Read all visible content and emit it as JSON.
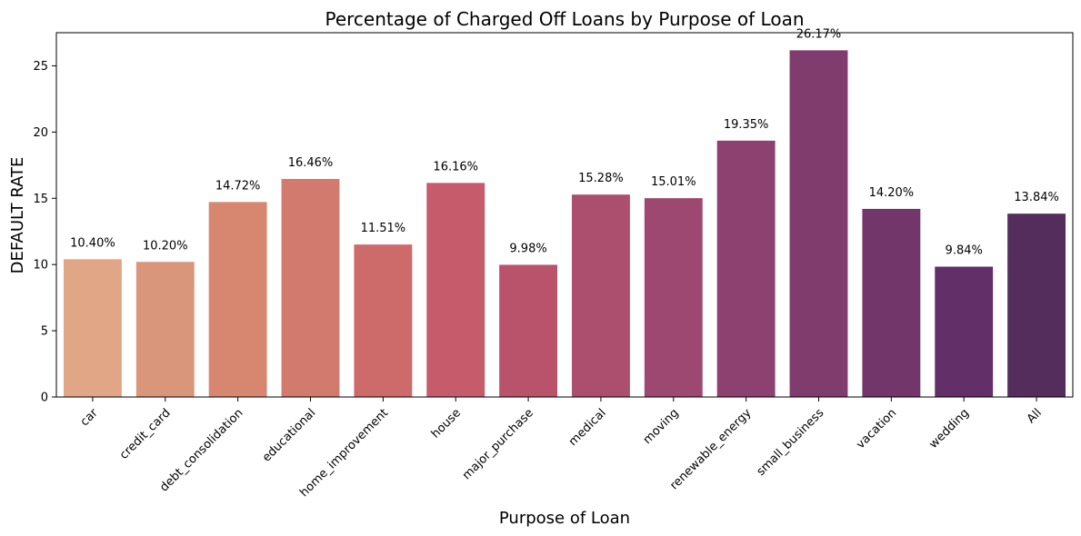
{
  "chart_data": {
    "type": "bar",
    "title": "Percentage of Charged Off Loans by Purpose of Loan",
    "xlabel": "Purpose of Loan",
    "ylabel": "DEFAULT RATE",
    "categories": [
      "car",
      "credit_card",
      "debt_consolidation",
      "educational",
      "home_improvement",
      "house",
      "major_purchase",
      "medical",
      "moving",
      "renewable_energy",
      "small_business",
      "vacation",
      "wedding",
      "All"
    ],
    "values": [
      10.4,
      10.2,
      14.72,
      16.46,
      11.51,
      16.16,
      9.98,
      15.28,
      15.01,
      19.35,
      26.17,
      14.2,
      9.84,
      13.84
    ],
    "data_labels": [
      "10.40%",
      "10.20%",
      "14.72%",
      "16.46%",
      "11.51%",
      "16.16%",
      "9.98%",
      "15.28%",
      "15.01%",
      "19.35%",
      "26.17%",
      "14.20%",
      "9.84%",
      "13.84%"
    ],
    "yticks": [
      0,
      5,
      10,
      15,
      20,
      25
    ],
    "ylim": [
      0,
      27.5
    ],
    "grid": false,
    "colors": [
      "#e0a685",
      "#da967a",
      "#d7876f",
      "#d17a6d",
      "#cd6b6a",
      "#c55b6b",
      "#b9536c",
      "#ac4e6e",
      "#9d4870",
      "#8d4170",
      "#7f3c6c",
      "#72366a",
      "#632f69",
      "#552d5c"
    ]
  }
}
